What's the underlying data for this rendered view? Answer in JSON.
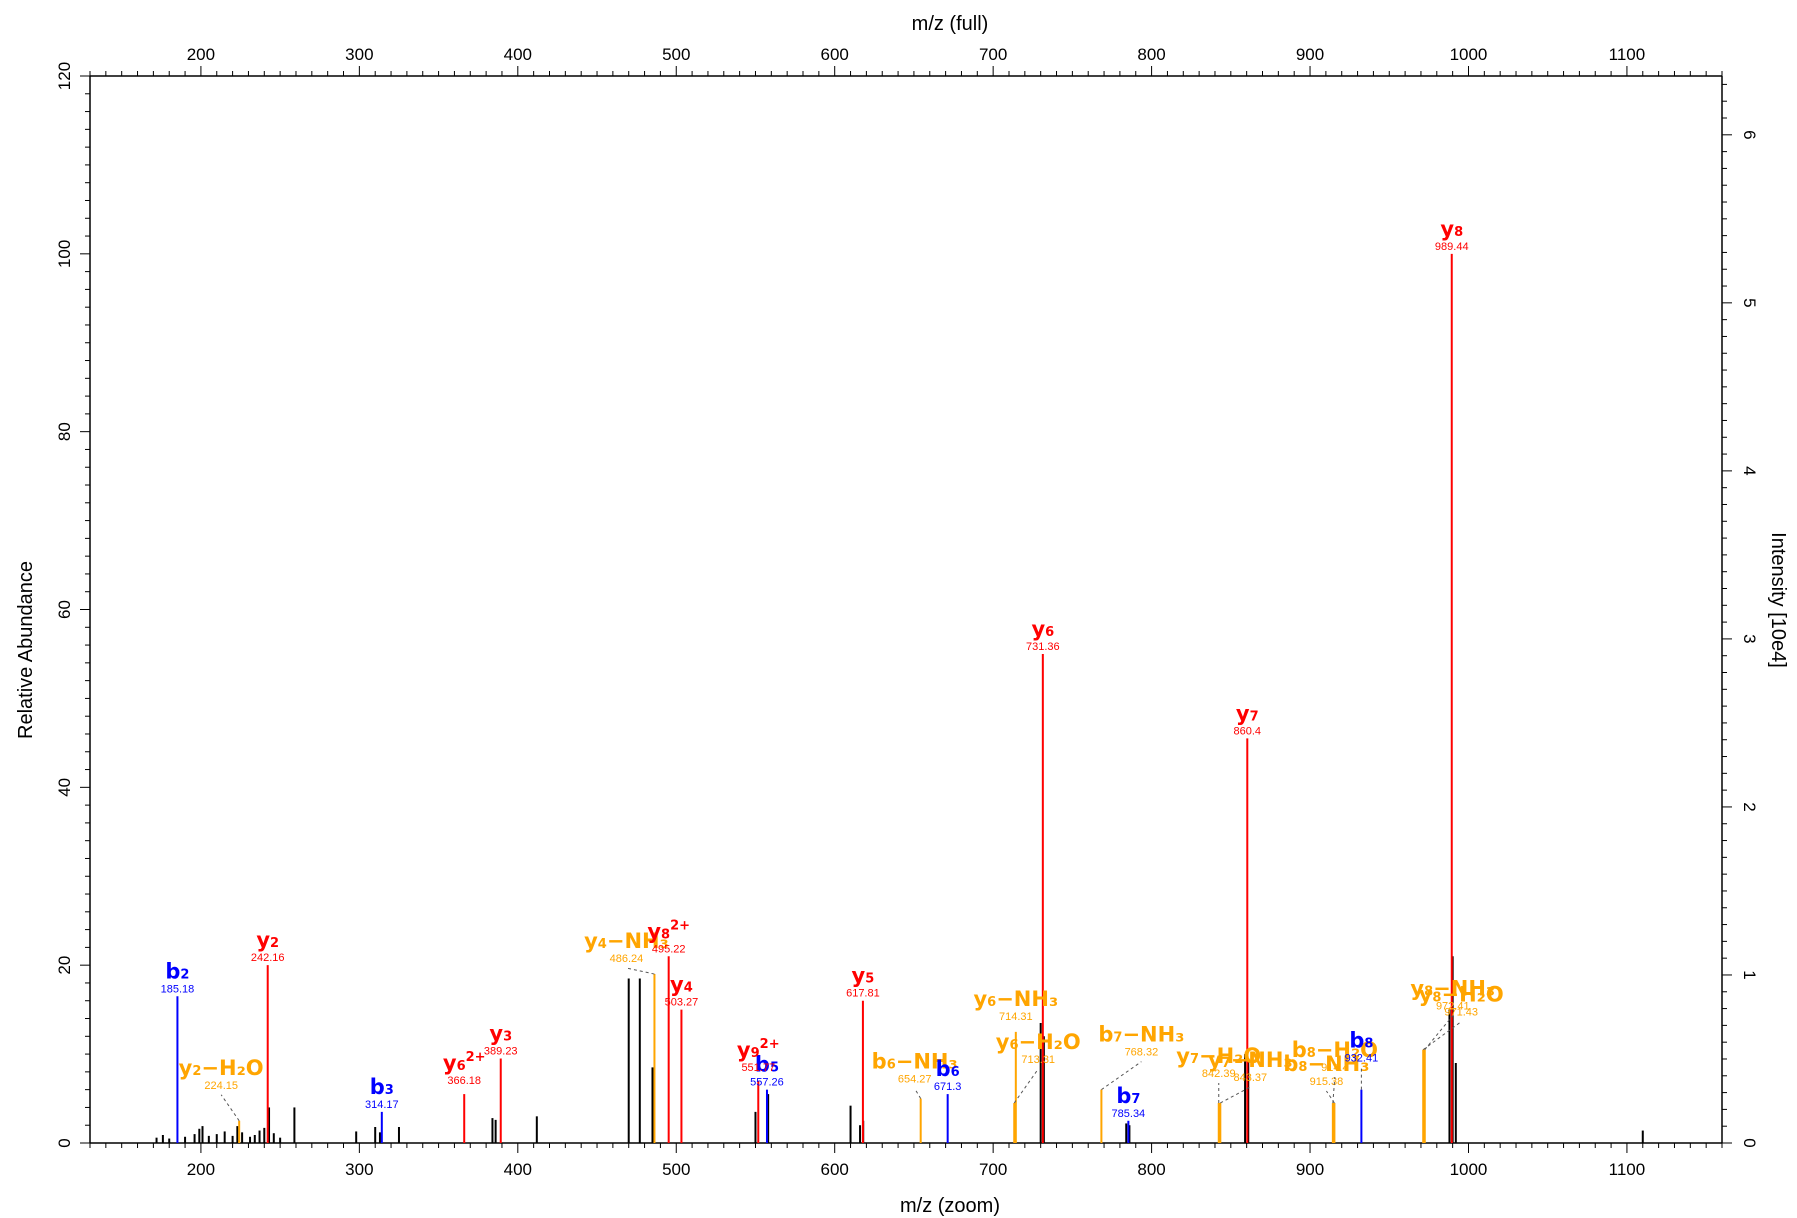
{
  "chart_data": {
    "type": "bar",
    "subtype": "mass-spectrum",
    "title": "",
    "xlabel": "m/z (zoom)",
    "x2label": "m/z (full)",
    "ylabel": "Relative Abundance",
    "y2label": "Intensity [10e4]",
    "xlim": [
      130,
      1160
    ],
    "ylim": [
      0,
      120
    ],
    "y2lim": [
      0,
      6.35
    ],
    "x_ticks": [
      200,
      300,
      400,
      500,
      600,
      700,
      800,
      900,
      1000,
      1100
    ],
    "y_ticks": [
      0,
      20,
      40,
      60,
      80,
      100,
      120
    ],
    "y2_ticks": [
      0,
      1,
      2,
      3,
      4,
      5,
      6
    ],
    "grid": false,
    "colors": {
      "y": "#ff0000",
      "b": "#0000ff",
      "neutral_loss": "#ffa500",
      "unassigned": "#000000"
    },
    "annotated_peaks": [
      {
        "series": "b",
        "ion": "b",
        "sub": "2",
        "sup": "",
        "loss": "",
        "mz": 185.18,
        "mz_label": "185.18",
        "intensity": 16.5
      },
      {
        "series": "y",
        "ion": "y",
        "sub": "2",
        "sup": "",
        "loss": "",
        "mz": 242.16,
        "mz_label": "242.16",
        "intensity": 20
      },
      {
        "series": "neutral_loss",
        "ion": "y",
        "sub": "2",
        "sup": "",
        "loss": "H₂O",
        "mz": 224.15,
        "mz_label": "224.15",
        "intensity": 2.5
      },
      {
        "series": "b",
        "ion": "b",
        "sub": "3",
        "sup": "",
        "loss": "",
        "mz": 314.17,
        "mz_label": "314.17",
        "intensity": 3.5
      },
      {
        "series": "y",
        "ion": "y",
        "sub": "6",
        "sup": "2+",
        "loss": "",
        "mz": 366.18,
        "mz_label": "366.18",
        "intensity": 5.5
      },
      {
        "series": "y",
        "ion": "y",
        "sub": "3",
        "sup": "",
        "loss": "",
        "mz": 389.23,
        "mz_label": "389.23",
        "intensity": 9.5
      },
      {
        "series": "neutral_loss",
        "ion": "y",
        "sub": "4",
        "sup": "",
        "loss": "NH₃",
        "mz": 486.24,
        "mz_label": "486.24",
        "intensity": 19
      },
      {
        "series": "y",
        "ion": "y",
        "sub": "8",
        "sup": "2+",
        "loss": "",
        "mz": 495.22,
        "mz_label": "495.22",
        "intensity": 21
      },
      {
        "series": "y",
        "ion": "y",
        "sub": "4",
        "sup": "",
        "loss": "",
        "mz": 503.27,
        "mz_label": "503.27",
        "intensity": 15
      },
      {
        "series": "b",
        "ion": "b",
        "sub": "5",
        "sup": "",
        "loss": "",
        "mz": 557.26,
        "mz_label": "557.26",
        "intensity": 6
      },
      {
        "series": "y",
        "ion": "y",
        "sub": "9",
        "sup": "2+",
        "loss": "",
        "mz": 551.77,
        "mz_label": "551.77",
        "intensity": 7
      },
      {
        "series": "y",
        "ion": "y",
        "sub": "5",
        "sup": "",
        "loss": "",
        "mz": 617.81,
        "mz_label": "617.81",
        "intensity": 16
      },
      {
        "series": "neutral_loss",
        "ion": "b",
        "sub": "6",
        "sup": "",
        "loss": "NH₃",
        "mz": 654.27,
        "mz_label": "654.27",
        "intensity": 5
      },
      {
        "series": "b",
        "ion": "b",
        "sub": "6",
        "sup": "",
        "loss": "",
        "mz": 671.3,
        "mz_label": "671.3",
        "intensity": 5.5
      },
      {
        "series": "neutral_loss",
        "ion": "y",
        "sub": "6",
        "sup": "",
        "loss": "NH₃",
        "mz": 714.31,
        "mz_label": "714.31",
        "intensity": 12.5
      },
      {
        "series": "neutral_loss",
        "ion": "y",
        "sub": "6",
        "sup": "",
        "loss": "H₂O",
        "mz": 713.31,
        "mz_label": "713.31",
        "intensity": 4.5
      },
      {
        "series": "y",
        "ion": "y",
        "sub": "6",
        "sup": "",
        "loss": "",
        "mz": 731.36,
        "mz_label": "731.36",
        "intensity": 55
      },
      {
        "series": "neutral_loss",
        "ion": "b",
        "sub": "7",
        "sup": "",
        "loss": "NH₃",
        "mz": 768.32,
        "mz_label": "768.32",
        "intensity": 6
      },
      {
        "series": "b",
        "ion": "b",
        "sub": "7",
        "sup": "",
        "loss": "",
        "mz": 785.34,
        "mz_label": "785.34",
        "intensity": 2.5
      },
      {
        "series": "neutral_loss",
        "ion": "y",
        "sub": "7",
        "sup": "",
        "loss": "NH₃",
        "mz": 843.37,
        "mz_label": "843.37",
        "intensity": 4.5
      },
      {
        "series": "neutral_loss",
        "ion": "y",
        "sub": "7",
        "sup": "",
        "loss": "H₂O",
        "mz": 842.39,
        "mz_label": "842.39",
        "intensity": 4.5
      },
      {
        "series": "y",
        "ion": "y",
        "sub": "7",
        "sup": "",
        "loss": "",
        "mz": 860.4,
        "mz_label": "860.4",
        "intensity": 45.5
      },
      {
        "series": "neutral_loss",
        "ion": "b",
        "sub": "8",
        "sup": "",
        "loss": "NH₃",
        "mz": 915.38,
        "mz_label": "915.38",
        "intensity": 4.5
      },
      {
        "series": "neutral_loss",
        "ion": "b",
        "sub": "8",
        "sup": "",
        "loss": "H₂O",
        "mz": 914.4,
        "mz_label": "914.4",
        "intensity": 4.5
      },
      {
        "series": "b",
        "ion": "b",
        "sub": "8",
        "sup": "",
        "loss": "",
        "mz": 932.41,
        "mz_label": "932.41",
        "intensity": 6
      },
      {
        "series": "neutral_loss",
        "ion": "y",
        "sub": "8",
        "sup": "",
        "loss": "NH₃",
        "mz": 972.41,
        "mz_label": "972.41",
        "intensity": 10.5
      },
      {
        "series": "neutral_loss",
        "ion": "y",
        "sub": "8",
        "sup": "",
        "loss": "H₂O",
        "mz": 971.43,
        "mz_label": "971.43",
        "intensity": 10.5
      },
      {
        "series": "y",
        "ion": "y",
        "sub": "8",
        "sup": "",
        "loss": "",
        "mz": 989.44,
        "mz_label": "989.44",
        "intensity": 100
      }
    ],
    "unassigned_peaks": [
      {
        "mz": 172,
        "intensity": 0.6
      },
      {
        "mz": 176,
        "intensity": 0.9
      },
      {
        "mz": 180,
        "intensity": 0.5
      },
      {
        "mz": 190,
        "intensity": 0.7
      },
      {
        "mz": 196,
        "intensity": 1.0
      },
      {
        "mz": 199,
        "intensity": 1.6
      },
      {
        "mz": 201,
        "intensity": 1.9
      },
      {
        "mz": 205,
        "intensity": 0.8
      },
      {
        "mz": 210,
        "intensity": 1.0
      },
      {
        "mz": 215,
        "intensity": 1.3
      },
      {
        "mz": 220,
        "intensity": 0.8
      },
      {
        "mz": 223,
        "intensity": 1.9
      },
      {
        "mz": 226,
        "intensity": 1.2
      },
      {
        "mz": 231,
        "intensity": 0.7
      },
      {
        "mz": 234,
        "intensity": 0.9
      },
      {
        "mz": 237,
        "intensity": 1.4
      },
      {
        "mz": 240,
        "intensity": 1.7
      },
      {
        "mz": 243,
        "intensity": 4.0
      },
      {
        "mz": 246,
        "intensity": 1.1
      },
      {
        "mz": 250,
        "intensity": 0.6
      },
      {
        "mz": 259,
        "intensity": 4.0
      },
      {
        "mz": 298,
        "intensity": 1.3
      },
      {
        "mz": 310,
        "intensity": 1.8
      },
      {
        "mz": 313,
        "intensity": 1.2
      },
      {
        "mz": 325,
        "intensity": 1.8
      },
      {
        "mz": 384,
        "intensity": 2.8
      },
      {
        "mz": 386,
        "intensity": 2.6
      },
      {
        "mz": 412,
        "intensity": 3.0
      },
      {
        "mz": 470,
        "intensity": 18.5
      },
      {
        "mz": 477,
        "intensity": 18.5
      },
      {
        "mz": 485,
        "intensity": 8.5
      },
      {
        "mz": 550,
        "intensity": 3.5
      },
      {
        "mz": 558,
        "intensity": 5.5
      },
      {
        "mz": 610,
        "intensity": 4.2
      },
      {
        "mz": 616,
        "intensity": 2.0
      },
      {
        "mz": 618,
        "intensity": 2.5
      },
      {
        "mz": 730,
        "intensity": 13.5
      },
      {
        "mz": 732,
        "intensity": 12.0
      },
      {
        "mz": 784,
        "intensity": 2.2
      },
      {
        "mz": 786,
        "intensity": 2.0
      },
      {
        "mz": 859,
        "intensity": 10.0
      },
      {
        "mz": 861,
        "intensity": 9.5
      },
      {
        "mz": 990,
        "intensity": 21.0
      },
      {
        "mz": 988,
        "intensity": 15.0
      },
      {
        "mz": 992,
        "intensity": 9.0
      },
      {
        "mz": 1110,
        "intensity": 1.4
      }
    ]
  }
}
